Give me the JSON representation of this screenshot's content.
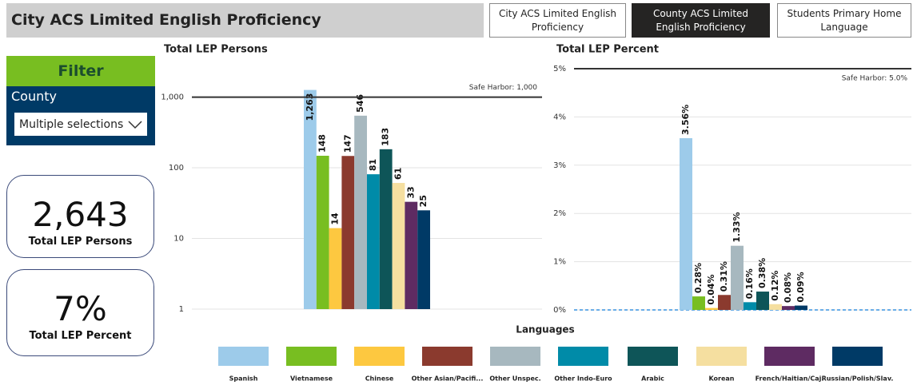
{
  "header": {
    "title": "City ACS Limited English Proficiency"
  },
  "tabs": [
    "City ACS Limited English Proficiency",
    "County ACS Limited English Proficiency",
    "Students Primary Home Language"
  ],
  "filter": {
    "title": "Filter",
    "label": "County",
    "selection": "Multiple selections"
  },
  "kpis": [
    {
      "value": "2,643",
      "label": "Total LEP Persons"
    },
    {
      "value": "7%",
      "label": "Total LEP Percent"
    }
  ],
  "legend": {
    "title": "Languages",
    "categories": [
      "Spanish",
      "Vietnamese",
      "Chinese",
      "Other Asian/Pacifi...",
      "Other Unspec.",
      "Other Indo-Euro",
      "Arabic",
      "Korean",
      "French/Haitian/Caj.",
      "Russian/Polish/Slav."
    ],
    "colors": [
      "#9dcbea",
      "#78be21",
      "#fdc840",
      "#8b3a2e",
      "#a7b8bf",
      "#008ba8",
      "#0e5558",
      "#f5dfa0",
      "#5e2b62",
      "#003a66"
    ]
  },
  "chart_data": [
    {
      "type": "bar",
      "title": "Total LEP Persons",
      "log": true,
      "grid": true,
      "values": [
        1263,
        148,
        14,
        147,
        546,
        81,
        183,
        61,
        33,
        25
      ],
      "value_labels": [
        "1,263",
        "148",
        "14",
        "147",
        "546",
        "81",
        "183",
        "61",
        "33",
        "25"
      ],
      "ylim": [
        1,
        1500
      ],
      "yticks": [
        1,
        10,
        100,
        {
          "value": 1000,
          "label": "1,000"
        }
      ],
      "reference_line": {
        "value": 1000,
        "label": "Safe Harbor: 1,000"
      }
    },
    {
      "type": "bar",
      "title": "Total LEP Percent",
      "log": false,
      "grid": true,
      "values": [
        3.56,
        0.28,
        0.04,
        0.31,
        1.33,
        0.16,
        0.38,
        0.12,
        0.08,
        0.09
      ],
      "value_labels": [
        "3.56%",
        "0.28%",
        "0.04%",
        "0.31%",
        "1.33%",
        "0.16%",
        "0.38%",
        "0.12%",
        "0.08%",
        "0.09%"
      ],
      "ylim": [
        0,
        5
      ],
      "yticks": [
        {
          "value": 0,
          "label": "0%"
        },
        {
          "value": 1,
          "label": "1%"
        },
        {
          "value": 2,
          "label": "2%"
        },
        {
          "value": 3,
          "label": "3%"
        },
        {
          "value": 4,
          "label": "4%"
        },
        {
          "value": 5,
          "label": "5%"
        }
      ],
      "reference_line": {
        "value": 5,
        "label": "Safe Harbor: 5.0%"
      }
    }
  ]
}
